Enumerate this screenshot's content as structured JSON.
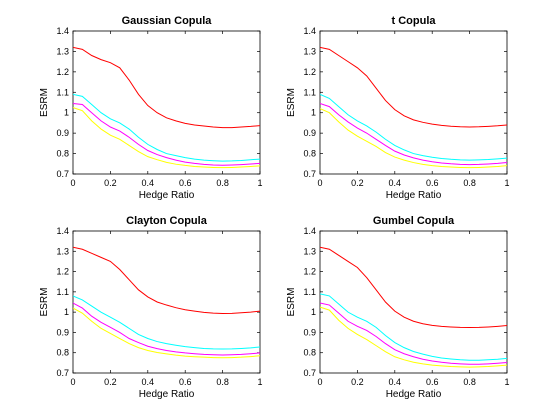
{
  "chart_data": [
    {
      "type": "line",
      "title": "Gaussian Copula",
      "xlabel": "Hedge Ratio",
      "ylabel": "ESRM",
      "xlim": [
        0,
        1
      ],
      "ylim": [
        0.7,
        1.4
      ],
      "xticks": [
        0,
        0.2,
        0.4,
        0.6,
        0.8,
        1
      ],
      "yticks": [
        0.7,
        0.8,
        0.9,
        1,
        1.1,
        1.2,
        1.3,
        1.4
      ],
      "xtick_labels": [
        "0",
        "0.2",
        "0.4",
        "0.6",
        "0.8",
        "1"
      ],
      "ytick_labels": [
        "0.7",
        "0.8",
        "0.9",
        "1",
        "1.1",
        "1.2",
        "1.3",
        "1.4"
      ],
      "grid": false,
      "x": [
        0,
        0.05,
        0.1,
        0.15,
        0.2,
        0.25,
        0.3,
        0.35,
        0.4,
        0.45,
        0.5,
        0.55,
        0.6,
        0.65,
        0.7,
        0.75,
        0.8,
        0.85,
        0.9,
        0.95,
        1
      ],
      "series": [
        {
          "color": "#ff0000",
          "values": [
            1.32,
            1.31,
            1.28,
            1.26,
            1.245,
            1.22,
            1.16,
            1.09,
            1.035,
            1.0,
            0.975,
            0.96,
            0.948,
            0.94,
            0.935,
            0.93,
            0.927,
            0.927,
            0.93,
            0.933,
            0.937
          ]
        },
        {
          "color": "#00ffff",
          "values": [
            1.09,
            1.08,
            1.04,
            1.0,
            0.97,
            0.95,
            0.92,
            0.88,
            0.845,
            0.82,
            0.8,
            0.79,
            0.78,
            0.773,
            0.768,
            0.765,
            0.763,
            0.764,
            0.766,
            0.77,
            0.773
          ]
        },
        {
          "color": "#ff00ff",
          "values": [
            1.045,
            1.04,
            1.0,
            0.96,
            0.93,
            0.91,
            0.88,
            0.845,
            0.815,
            0.795,
            0.78,
            0.768,
            0.758,
            0.752,
            0.747,
            0.744,
            0.743,
            0.744,
            0.746,
            0.749,
            0.752
          ]
        },
        {
          "color": "#ffff00",
          "values": [
            1.025,
            1.01,
            0.96,
            0.92,
            0.89,
            0.87,
            0.84,
            0.81,
            0.785,
            0.77,
            0.757,
            0.748,
            0.742,
            0.737,
            0.734,
            0.732,
            0.731,
            0.732,
            0.734,
            0.737,
            0.74
          ]
        }
      ]
    },
    {
      "type": "line",
      "title": "t Copula",
      "xlabel": "Hedge Ratio",
      "ylabel": "ESRM",
      "xlim": [
        0,
        1
      ],
      "ylim": [
        0.7,
        1.4
      ],
      "xticks": [
        0,
        0.2,
        0.4,
        0.6,
        0.8,
        1
      ],
      "yticks": [
        0.7,
        0.8,
        0.9,
        1,
        1.1,
        1.2,
        1.3,
        1.4
      ],
      "xtick_labels": [
        "0",
        "0.2",
        "0.4",
        "0.6",
        "0.8",
        "1"
      ],
      "ytick_labels": [
        "0.7",
        "0.8",
        "0.9",
        "1",
        "1.1",
        "1.2",
        "1.3",
        "1.4"
      ],
      "grid": false,
      "x": [
        0,
        0.05,
        0.1,
        0.15,
        0.2,
        0.25,
        0.3,
        0.35,
        0.4,
        0.45,
        0.5,
        0.55,
        0.6,
        0.65,
        0.7,
        0.75,
        0.8,
        0.85,
        0.9,
        0.95,
        1
      ],
      "series": [
        {
          "color": "#ff0000",
          "values": [
            1.32,
            1.31,
            1.28,
            1.25,
            1.22,
            1.18,
            1.12,
            1.06,
            1.015,
            0.985,
            0.965,
            0.953,
            0.944,
            0.938,
            0.934,
            0.931,
            0.93,
            0.931,
            0.933,
            0.936,
            0.94
          ]
        },
        {
          "color": "#00ffff",
          "values": [
            1.09,
            1.07,
            1.03,
            0.99,
            0.96,
            0.935,
            0.905,
            0.87,
            0.84,
            0.818,
            0.8,
            0.79,
            0.782,
            0.776,
            0.772,
            0.769,
            0.768,
            0.769,
            0.771,
            0.774,
            0.778
          ]
        },
        {
          "color": "#ff00ff",
          "values": [
            1.045,
            1.03,
            0.99,
            0.955,
            0.925,
            0.9,
            0.87,
            0.84,
            0.812,
            0.793,
            0.779,
            0.768,
            0.76,
            0.754,
            0.75,
            0.747,
            0.746,
            0.747,
            0.749,
            0.752,
            0.756
          ]
        },
        {
          "color": "#ffff00",
          "values": [
            1.02,
            1.0,
            0.955,
            0.915,
            0.885,
            0.86,
            0.835,
            0.805,
            0.783,
            0.768,
            0.756,
            0.747,
            0.741,
            0.737,
            0.734,
            0.732,
            0.731,
            0.732,
            0.734,
            0.737,
            0.741
          ]
        }
      ]
    },
    {
      "type": "line",
      "title": "Clayton Copula",
      "xlabel": "Hedge Ratio",
      "ylabel": "ESRM",
      "xlim": [
        0,
        1
      ],
      "ylim": [
        0.7,
        1.4
      ],
      "xticks": [
        0,
        0.2,
        0.4,
        0.6,
        0.8,
        1
      ],
      "yticks": [
        0.7,
        0.8,
        0.9,
        1,
        1.1,
        1.2,
        1.3,
        1.4
      ],
      "xtick_labels": [
        "0",
        "0.2",
        "0.4",
        "0.6",
        "0.8",
        "1"
      ],
      "ytick_labels": [
        "0.7",
        "0.8",
        "0.9",
        "1",
        "1.1",
        "1.2",
        "1.3",
        "1.4"
      ],
      "grid": false,
      "x": [
        0,
        0.05,
        0.1,
        0.15,
        0.2,
        0.25,
        0.3,
        0.35,
        0.4,
        0.45,
        0.5,
        0.55,
        0.6,
        0.65,
        0.7,
        0.75,
        0.8,
        0.85,
        0.9,
        0.95,
        1
      ],
      "series": [
        {
          "color": "#ff0000",
          "values": [
            1.32,
            1.31,
            1.29,
            1.27,
            1.25,
            1.21,
            1.16,
            1.11,
            1.075,
            1.05,
            1.035,
            1.022,
            1.012,
            1.005,
            0.999,
            0.995,
            0.993,
            0.994,
            0.997,
            1.0,
            1.005
          ]
        },
        {
          "color": "#00ffff",
          "values": [
            1.08,
            1.06,
            1.03,
            1.0,
            0.975,
            0.95,
            0.92,
            0.89,
            0.87,
            0.855,
            0.845,
            0.837,
            0.83,
            0.825,
            0.821,
            0.819,
            0.818,
            0.819,
            0.821,
            0.824,
            0.828
          ]
        },
        {
          "color": "#ff00ff",
          "values": [
            1.045,
            1.02,
            0.98,
            0.95,
            0.925,
            0.9,
            0.87,
            0.85,
            0.832,
            0.82,
            0.811,
            0.804,
            0.799,
            0.795,
            0.792,
            0.79,
            0.789,
            0.79,
            0.792,
            0.795,
            0.799
          ]
        },
        {
          "color": "#ffff00",
          "values": [
            1.02,
            0.995,
            0.955,
            0.92,
            0.895,
            0.87,
            0.845,
            0.825,
            0.811,
            0.801,
            0.794,
            0.788,
            0.783,
            0.78,
            0.778,
            0.776,
            0.775,
            0.776,
            0.778,
            0.781,
            0.785
          ]
        }
      ]
    },
    {
      "type": "line",
      "title": "Gumbel Copula",
      "xlabel": "Hedge Ratio",
      "ylabel": "ESRM",
      "xlim": [
        0,
        1
      ],
      "ylim": [
        0.7,
        1.4
      ],
      "xticks": [
        0,
        0.2,
        0.4,
        0.6,
        0.8,
        1
      ],
      "yticks": [
        0.7,
        0.8,
        0.9,
        1,
        1.1,
        1.2,
        1.3,
        1.4
      ],
      "xtick_labels": [
        "0",
        "0.2",
        "0.4",
        "0.6",
        "0.8",
        "1"
      ],
      "ytick_labels": [
        "0.7",
        "0.8",
        "0.9",
        "1",
        "1.1",
        "1.2",
        "1.3",
        "1.4"
      ],
      "grid": false,
      "x": [
        0,
        0.05,
        0.1,
        0.15,
        0.2,
        0.25,
        0.3,
        0.35,
        0.4,
        0.45,
        0.5,
        0.55,
        0.6,
        0.65,
        0.7,
        0.75,
        0.8,
        0.85,
        0.9,
        0.95,
        1
      ],
      "series": [
        {
          "color": "#ff0000",
          "values": [
            1.32,
            1.31,
            1.28,
            1.25,
            1.22,
            1.17,
            1.11,
            1.05,
            1.005,
            0.975,
            0.955,
            0.943,
            0.935,
            0.93,
            0.927,
            0.925,
            0.924,
            0.925,
            0.927,
            0.93,
            0.934
          ]
        },
        {
          "color": "#00ffff",
          "values": [
            1.09,
            1.08,
            1.04,
            1.0,
            0.975,
            0.955,
            0.925,
            0.885,
            0.85,
            0.825,
            0.806,
            0.793,
            0.782,
            0.774,
            0.769,
            0.765,
            0.763,
            0.763,
            0.765,
            0.768,
            0.772
          ]
        },
        {
          "color": "#ff00ff",
          "values": [
            1.045,
            1.035,
            0.995,
            0.955,
            0.93,
            0.91,
            0.88,
            0.845,
            0.815,
            0.795,
            0.78,
            0.768,
            0.759,
            0.753,
            0.748,
            0.745,
            0.743,
            0.743,
            0.745,
            0.748,
            0.752
          ]
        },
        {
          "color": "#ffff00",
          "values": [
            1.025,
            1.01,
            0.96,
            0.92,
            0.89,
            0.865,
            0.835,
            0.805,
            0.78,
            0.765,
            0.753,
            0.745,
            0.739,
            0.735,
            0.732,
            0.73,
            0.729,
            0.73,
            0.732,
            0.735,
            0.739
          ]
        }
      ]
    }
  ]
}
